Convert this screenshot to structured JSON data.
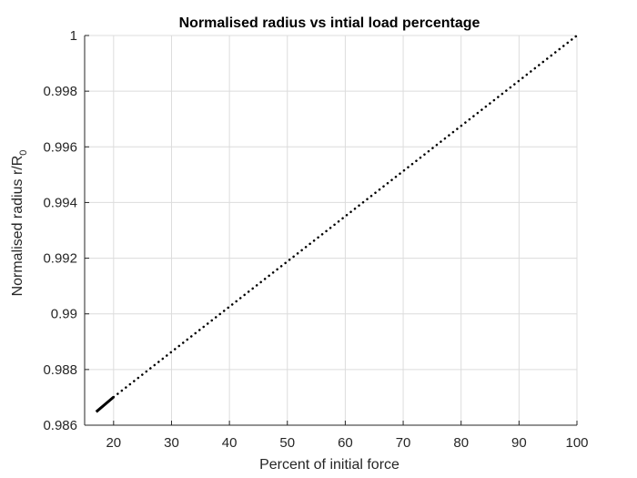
{
  "chart_data": {
    "type": "line",
    "title": "Normalised radius vs intial load percentage",
    "xlabel": "Percent of initial force",
    "ylabel": "Normalised radius r/R",
    "ylabel_subscript": "0",
    "xlim": [
      15,
      100
    ],
    "ylim": [
      0.986,
      1.0
    ],
    "xticks": [
      20,
      30,
      40,
      50,
      60,
      70,
      80,
      90,
      100
    ],
    "xtick_labels": [
      "20",
      "30",
      "40",
      "50",
      "60",
      "70",
      "80",
      "90",
      "100"
    ],
    "yticks": [
      0.986,
      0.988,
      0.99,
      0.992,
      0.994,
      0.996,
      0.998,
      1.0
    ],
    "ytick_labels": [
      "0.986",
      "0.988",
      "0.99",
      "0.992",
      "0.994",
      "0.996",
      "0.998",
      "1"
    ],
    "grid": true,
    "series": [
      {
        "style": "dotted",
        "color": "#000000",
        "x": [
          20,
          100
        ],
        "y": [
          0.98701,
          1.0
        ]
      },
      {
        "style": "solid",
        "color": "#000000",
        "x": [
          17,
          20
        ],
        "y": [
          0.98648,
          0.98701
        ]
      }
    ]
  }
}
